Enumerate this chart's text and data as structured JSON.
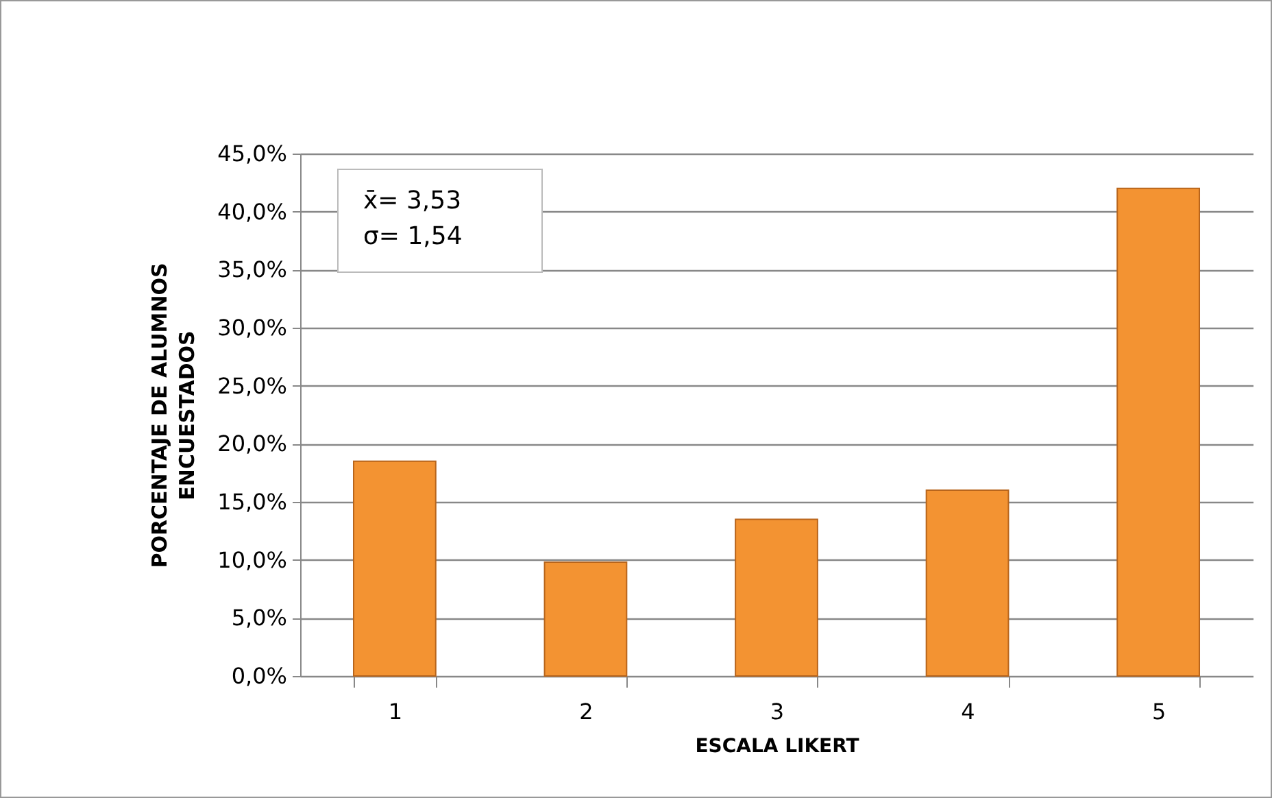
{
  "chart_data": {
    "type": "bar",
    "categories": [
      "1",
      "2",
      "3",
      "4",
      "5"
    ],
    "values": [
      18.5,
      9.8,
      13.5,
      16.0,
      42.0
    ],
    "color": "#f39332",
    "xlabel": "ESCALA LIKERT",
    "ylabel": "PORCENTAJE DE ALUMNOS\nENCUESTADOS",
    "ylim": [
      0,
      45
    ],
    "yticks": [
      {
        "value": 0,
        "label": "0,0%"
      },
      {
        "value": 5,
        "label": "5,0%"
      },
      {
        "value": 10,
        "label": "10,0%"
      },
      {
        "value": 15,
        "label": "15,0%"
      },
      {
        "value": 20,
        "label": "20,0%"
      },
      {
        "value": 25,
        "label": "25,0%"
      },
      {
        "value": 30,
        "label": "30,0%"
      },
      {
        "value": 35,
        "label": "35,0%"
      },
      {
        "value": 40,
        "label": "40,0%"
      },
      {
        "value": 45,
        "label": "45,0%"
      }
    ],
    "annotations": [
      "x̄= 3,53",
      "σ= 1,54"
    ],
    "grid": "y"
  }
}
